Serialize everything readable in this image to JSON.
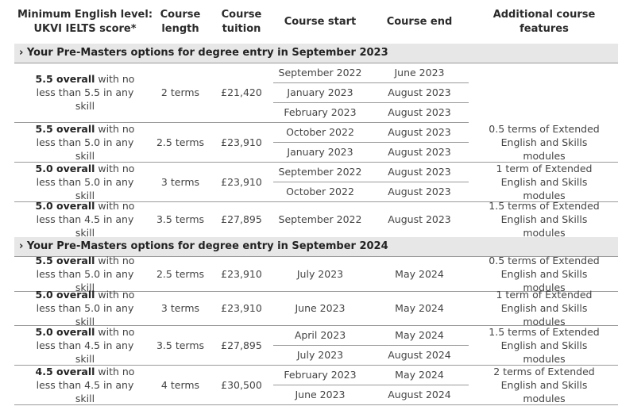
{
  "headers": [
    "Minimum English level: UKVI IELTS score*",
    "Course length",
    "Course tuition",
    "Course start",
    "Course end",
    "Additional course features"
  ],
  "sections": [
    {
      "title": "› Your Pre-Masters options for degree entry in September 2023",
      "groups": [
        {
          "level_bold": "5.5 overall",
          "level_rest": " with no less than 5.5 in any skill",
          "length": "2 terms",
          "tuition": "£21,420",
          "dates": [
            {
              "start": "September 2022",
              "end": "June 2023"
            },
            {
              "start": "January 2023",
              "end": "August 2023"
            },
            {
              "start": "February 2023",
              "end": "August 2023"
            }
          ],
          "features": ""
        },
        {
          "level_bold": "5.5 overall",
          "level_rest": " with no less than 5.0 in any skill",
          "length": "2.5 terms",
          "tuition": "£23,910",
          "dates": [
            {
              "start": "October 2022",
              "end": "August 2023"
            },
            {
              "start": "January 2023",
              "end": "August 2023"
            }
          ],
          "features": "0.5 terms of Extended English and Skills modules"
        },
        {
          "level_bold": "5.0 overall",
          "level_rest": " with no less than 5.0 in any skill",
          "length": "3 terms",
          "tuition": "£23,910",
          "dates": [
            {
              "start": "September 2022",
              "end": "August 2023"
            },
            {
              "start": "October 2022",
              "end": "August 2023"
            }
          ],
          "features": "1 term of Extended English and Skills modules"
        },
        {
          "level_bold": "5.0 overall",
          "level_rest": " with no less than 4.5 in any skill",
          "length": "3.5 terms",
          "tuition": "£27,895",
          "dates": [
            {
              "start": "September 2022",
              "end": "August 2023"
            }
          ],
          "features": "1.5 terms of Extended English and Skills modules"
        }
      ]
    },
    {
      "title": "› Your Pre-Masters options for degree entry in September 2024",
      "groups": [
        {
          "level_bold": "5.5 overall",
          "level_rest": " with no less than 5.0 in any skill",
          "length": "2.5 terms",
          "tuition": "£23,910",
          "dates": [
            {
              "start": "July 2023",
              "end": "May 2024"
            }
          ],
          "features": "0.5 terms of Extended English and Skills modules"
        },
        {
          "level_bold": "5.0 overall",
          "level_rest": " with no less than 5.0 in any skill",
          "length": "3 terms",
          "tuition": "£23,910",
          "dates": [
            {
              "start": "June 2023",
              "end": "May 2024"
            }
          ],
          "features": "1 term of Extended English and Skills modules"
        },
        {
          "level_bold": "5.0 overall",
          "level_rest": " with no less than 4.5 in any skill",
          "length": "3.5 terms",
          "tuition": "£27,895",
          "dates": [
            {
              "start": "April 2023",
              "end": "May 2024"
            },
            {
              "start": "July 2023",
              "end": "August 2024"
            }
          ],
          "features": "1.5 terms of Extended English and Skills modules"
        },
        {
          "level_bold": "4.5 overall",
          "level_rest": " with no less than 4.5 in any skill",
          "length": "4 terms",
          "tuition": "£30,500",
          "dates": [
            {
              "start": "February 2023",
              "end": "May 2024"
            },
            {
              "start": "June 2023",
              "end": "August 2024"
            }
          ],
          "features": "2 terms of Extended English and Skills modules"
        }
      ]
    }
  ]
}
